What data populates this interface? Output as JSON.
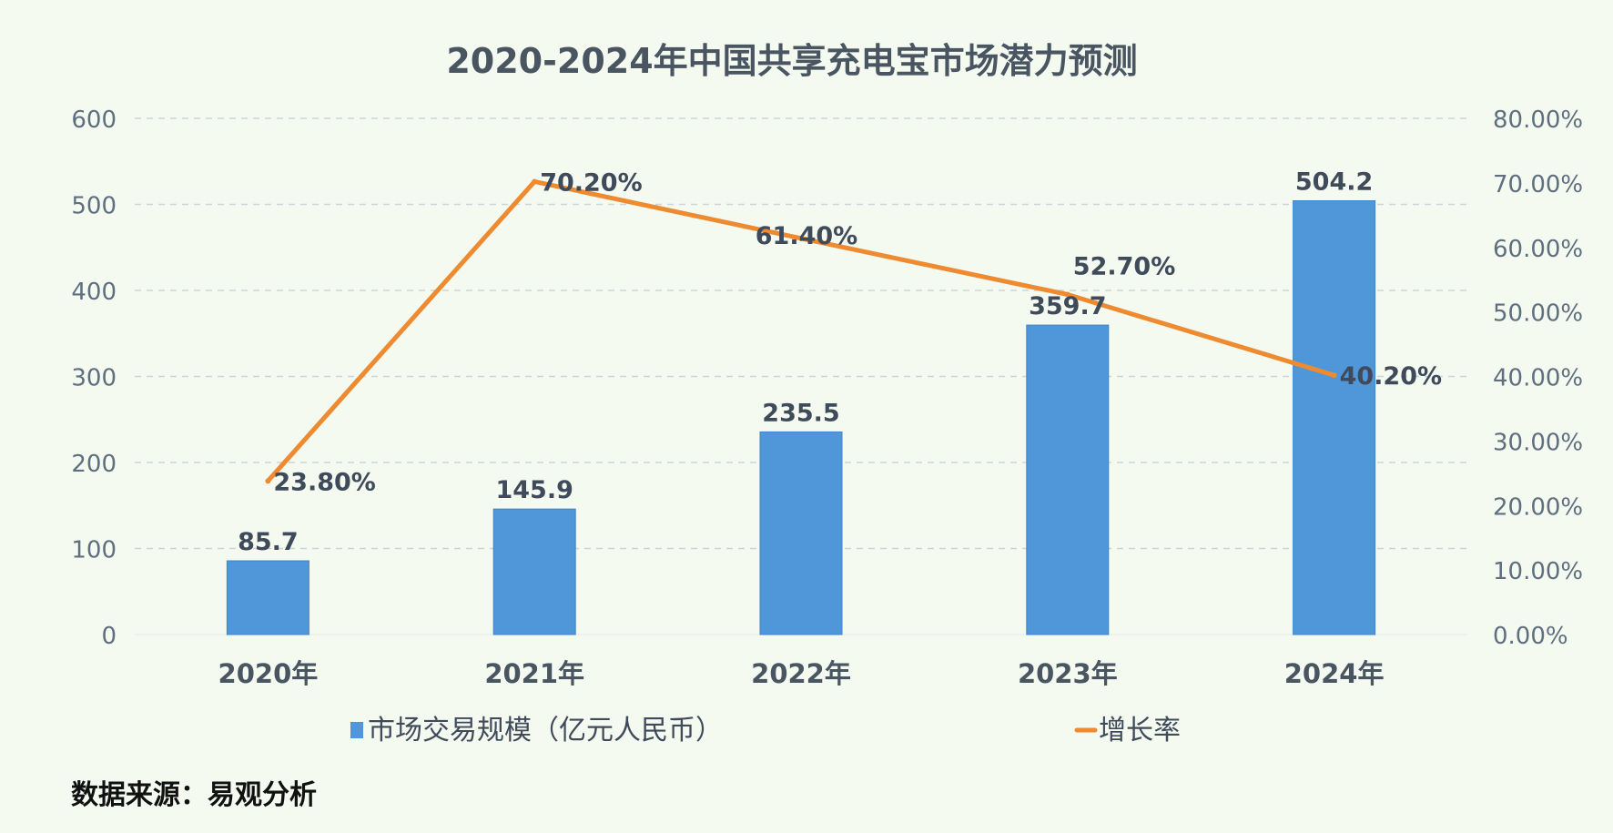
{
  "chart_data": {
    "type": "bar",
    "title": "2020-2024年中国共享充电宝市场潜力预测",
    "categories": [
      "2020年",
      "2021年",
      "2022年",
      "2023年",
      "2024年"
    ],
    "series": [
      {
        "name": "市场交易规模（亿元人民币）",
        "type": "bar",
        "axis": "left",
        "values": [
          85.7,
          145.9,
          235.5,
          359.7,
          504.2
        ],
        "data_labels": [
          "85.7",
          "145.9",
          "235.5",
          "359.7",
          "504.2"
        ],
        "color": "#4f97d9"
      },
      {
        "name": "增长率",
        "type": "line",
        "axis": "right",
        "values": [
          23.8,
          70.2,
          61.4,
          52.7,
          40.2
        ],
        "data_labels": [
          "23.80%",
          "70.20%",
          "61.40%",
          "52.70%",
          "40.20%"
        ],
        "color": "#ee8a30"
      }
    ],
    "y_left": {
      "ylim": [
        0,
        600
      ],
      "ticks": [
        0,
        100,
        200,
        300,
        400,
        500,
        600
      ],
      "tick_labels": [
        "0",
        "100",
        "200",
        "300",
        "400",
        "500",
        "600"
      ]
    },
    "y_right": {
      "ylim": [
        0,
        80
      ],
      "ticks": [
        0,
        10,
        20,
        30,
        40,
        50,
        60,
        70,
        80
      ],
      "tick_labels": [
        "0.00%",
        "10.00%",
        "20.00%",
        "30.00%",
        "40.00%",
        "50.00%",
        "60.00%",
        "70.00%",
        "80.00%"
      ]
    },
    "grid": true,
    "legend_position": "bottom"
  },
  "source_note": "数据来源：易观分析",
  "colors": {
    "background": "#f4faf0",
    "bar": "#4f97d9",
    "line": "#ee8a30",
    "text": "#3f4a5a",
    "axis_text": "#5f6f80",
    "grid": "#cfd3d8"
  }
}
